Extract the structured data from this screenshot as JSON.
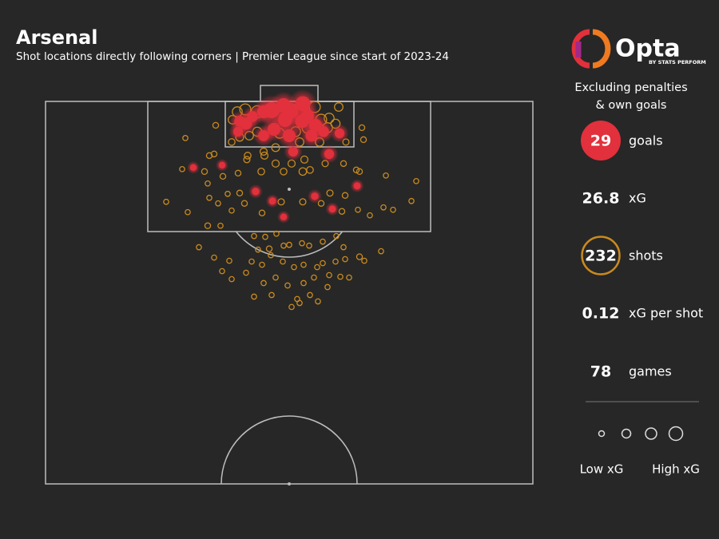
{
  "chart_data": {
    "type": "shotmap",
    "title": "Arsenal",
    "subtitle": "Shot locations directly following corners | Premier League since start of 2023-24",
    "brand": "Opta",
    "brand_sub": "BY STATS PERFORM",
    "note": [
      "Excluding penalties",
      "& own goals"
    ],
    "xlim": [
      0,
      610
    ],
    "ylim": [
      0,
      480
    ],
    "series": [
      {
        "name": "goals",
        "color": "#e2303c",
        "x": [
          283,
          298,
          322,
          300,
          321,
          286,
          251,
          259,
          273,
          305,
          333,
          348,
          368,
          241,
          310,
          355,
          185,
          221,
          263,
          284,
          337,
          359,
          390,
          298,
          338,
          273,
          308,
          328,
          243
        ],
        "y": [
          11,
          5,
          3,
          23,
          25,
          35,
          28,
          19,
          43,
          43,
          43,
          38,
          40,
          38,
          63,
          66,
          83,
          80,
          113,
          125,
          119,
          135,
          106,
          145,
          30,
          13,
          13,
          18,
          25
        ],
        "size": [
          0.5,
          0.4,
          0.45,
          0.4,
          0.35,
          0.3,
          0.25,
          0.2,
          0.2,
          0.3,
          0.25,
          0.2,
          0.15,
          0.15,
          0.15,
          0.15,
          0.05,
          0.05,
          0.07,
          0.06,
          0.07,
          0.06,
          0.06,
          0.05,
          0.3,
          0.3,
          0.35,
          0.3,
          0.2
        ]
      },
      {
        "name": "shots",
        "color": "#c98a1e",
        "x": [
          240,
          250,
          265,
          307,
          337,
          367,
          234,
          345,
          355,
          363,
          353,
          243,
          255,
          265,
          293,
          313,
          328,
          343,
          318,
          288,
          273,
          253,
          233,
          213,
          396,
          398,
          376,
          175,
          393,
          205,
          211,
          199,
          171,
          203,
          222,
          241,
          252,
          270,
          274,
          288,
          298,
          308,
          324,
          331,
          322,
          350,
          373,
          389,
          426,
          464,
          391,
          406,
          423,
          435,
          458,
          205,
          216,
          178,
          151,
          233,
          249,
          271,
          295,
          322,
          345,
          371,
          375,
          356,
          243,
          228,
          203,
          219,
          261,
          275,
          289,
          280,
          266,
          282,
          305,
          321,
          330,
          347,
          364,
          373,
          393,
          420,
          399,
          192,
          211,
          230,
          258,
          271,
          297,
          311,
          323,
          340,
          347,
          363,
          375,
          233,
          251,
          273,
          288,
          303,
          323,
          336,
          353,
          369,
          380,
          221,
          261,
          283,
          315,
          331,
          341,
          308,
          318,
          355,
          298
        ],
        "y": [
          13,
          10,
          13,
          11,
          7,
          7,
          23,
          23,
          21,
          28,
          33,
          45,
          43,
          38,
          40,
          38,
          33,
          51,
          51,
          58,
          63,
          68,
          51,
          30,
          33,
          48,
          51,
          46,
          88,
          68,
          66,
          88,
          85,
          103,
          94,
          90,
          73,
          88,
          68,
          78,
          88,
          78,
          73,
          86,
          88,
          78,
          78,
          86,
          93,
          100,
          136,
          143,
          133,
          136,
          125,
          121,
          128,
          139,
          126,
          137,
          128,
          140,
          126,
          126,
          128,
          138,
          118,
          115,
          115,
          116,
          156,
          156,
          169,
          170,
          166,
          185,
          186,
          193,
          180,
          178,
          181,
          176,
          169,
          183,
          195,
          188,
          200,
          183,
          196,
          200,
          201,
          205,
          201,
          208,
          205,
          208,
          203,
          201,
          198,
          223,
          215,
          228,
          221,
          231,
          228,
          221,
          233,
          220,
          221,
          213,
          245,
          243,
          248,
          243,
          251,
          258,
          253,
          218,
          181
        ],
        "size": [
          0.15,
          0.2,
          0.25,
          0.3,
          0.2,
          0.1,
          0.1,
          0.2,
          0.15,
          0.12,
          0.15,
          0.08,
          0.1,
          0.12,
          0.15,
          0.15,
          0.2,
          0.1,
          0.1,
          0.08,
          0.06,
          0.05,
          0.05,
          0.03,
          0.03,
          0.03,
          0.04,
          0.02,
          0.03,
          0.03,
          0.03,
          0.03,
          0.02,
          0.02,
          0.03,
          0.03,
          0.04,
          0.05,
          0.06,
          0.06,
          0.05,
          0.06,
          0.06,
          0.05,
          0.07,
          0.04,
          0.03,
          0.03,
          0.02,
          0.02,
          0.02,
          0.02,
          0.02,
          0.02,
          0.02,
          0.02,
          0.02,
          0.02,
          0.02,
          0.02,
          0.03,
          0.03,
          0.04,
          0.04,
          0.03,
          0.03,
          0.03,
          0.04,
          0.03,
          0.02,
          0.03,
          0.02,
          0.02,
          0.02,
          0.02,
          0.03,
          0.02,
          0.02,
          0.02,
          0.02,
          0.02,
          0.02,
          0.02,
          0.02,
          0.03,
          0.02,
          0.02,
          0.02,
          0.02,
          0.02,
          0.02,
          0.02,
          0.02,
          0.02,
          0.02,
          0.02,
          0.02,
          0.02,
          0.02,
          0.02,
          0.02,
          0.02,
          0.02,
          0.02,
          0.02,
          0.02,
          0.02,
          0.02,
          0.02,
          0.02,
          0.02,
          0.02,
          0.02,
          0.02,
          0.02,
          0.02,
          0.02,
          0.02,
          0.02
        ]
      }
    ],
    "stats": [
      {
        "value": 29,
        "label": "goals"
      },
      {
        "value": 26.8,
        "label": "xG"
      },
      {
        "value": 232,
        "label": "shots"
      },
      {
        "value": 0.12,
        "label": "xG per shot"
      },
      {
        "value": 78,
        "label": "games"
      }
    ],
    "legend_labels": [
      "Low xG",
      "High xG"
    ]
  }
}
